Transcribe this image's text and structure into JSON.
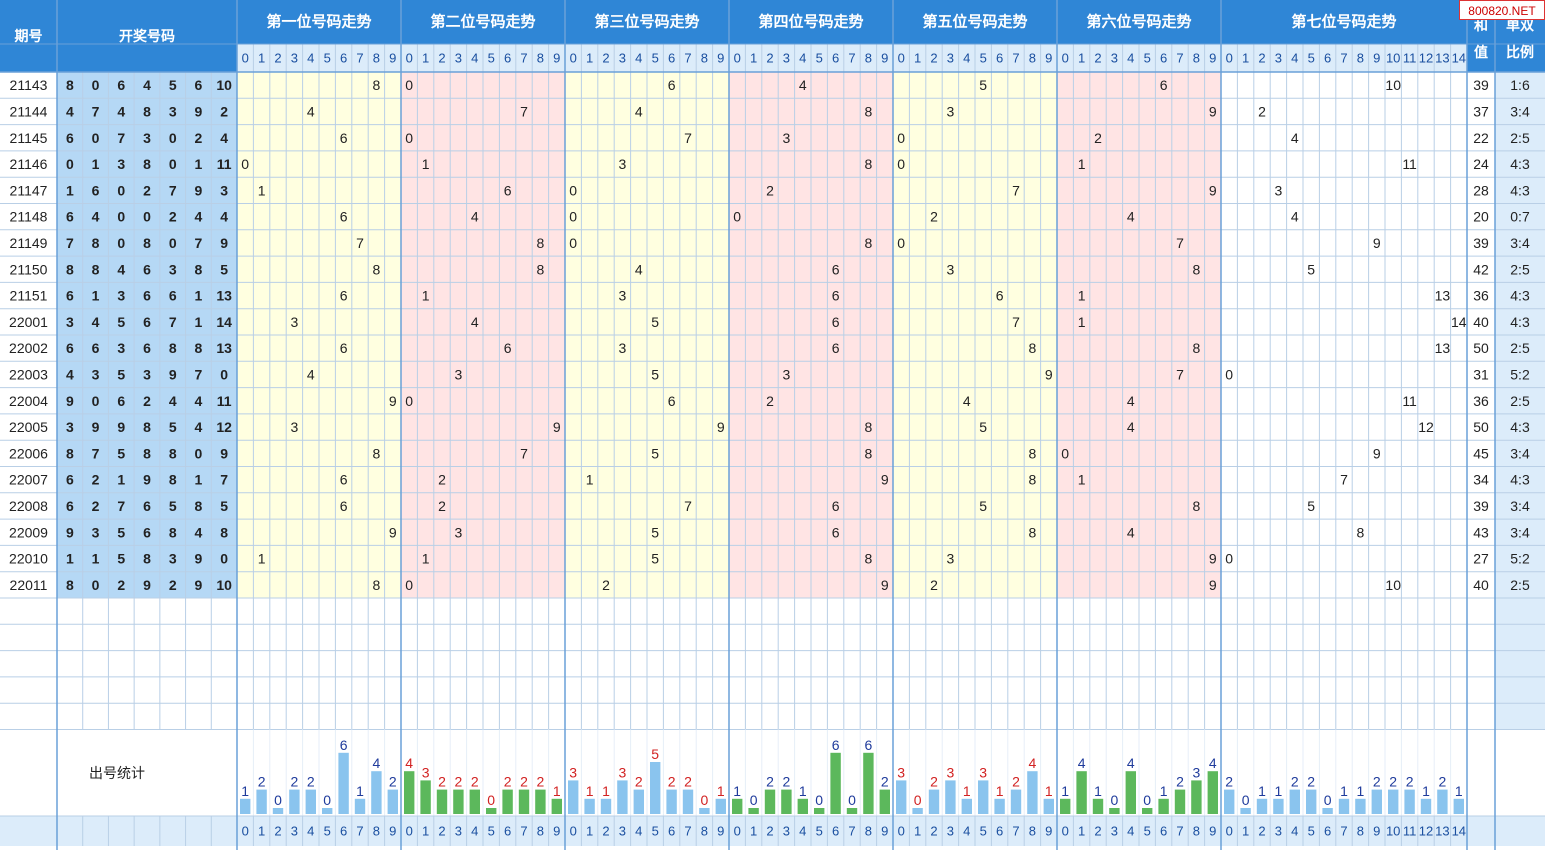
{
  "header": {
    "issue_label": "期号",
    "draw_label": "开奖号码",
    "sum_label": "和值",
    "parity_label": "单双比例",
    "stats_label": "出号统计"
  },
  "watermark": "800820.NET",
  "colors": {
    "header_bg": "#2f86d6",
    "header_text": "#ffffff",
    "digit_header_bg": "#dcecfa",
    "issue_bg": "#ffffff",
    "draw_bg": "#b5d8f5",
    "yellow_bg": "#ffffe0",
    "pink_bg": "#ffe4e4",
    "white_bg": "#ffffff",
    "grid_line": "#b9cfe6",
    "divider": "#6aa0d8",
    "stat_blue": "#8ac4ee",
    "stat_green": "#5cb85c",
    "stat_num_blue": "#1f3b9c",
    "stat_num_red": "#d22222",
    "cell_text": "#222222"
  },
  "positions": [
    {
      "title": "第一位号码走势",
      "max": 9,
      "background": "yellow",
      "bar_color": "blue",
      "num_color": "blue",
      "counts": [
        1,
        2,
        0,
        2,
        2,
        0,
        6,
        1,
        4,
        2
      ]
    },
    {
      "title": "第二位号码走势",
      "max": 9,
      "background": "pink",
      "bar_color": "green",
      "num_color": "red",
      "counts": [
        4,
        3,
        2,
        2,
        2,
        0,
        2,
        2,
        2,
        1
      ]
    },
    {
      "title": "第三位号码走势",
      "max": 9,
      "background": "yellow",
      "bar_color": "blue",
      "num_color": "red",
      "counts": [
        3,
        1,
        1,
        3,
        2,
        5,
        2,
        2,
        0,
        1
      ]
    },
    {
      "title": "第四位号码走势",
      "max": 9,
      "background": "pink",
      "bar_color": "green",
      "num_color": "blue",
      "counts": [
        1,
        0,
        2,
        2,
        1,
        0,
        6,
        0,
        6,
        2
      ]
    },
    {
      "title": "第五位号码走势",
      "max": 9,
      "background": "yellow",
      "bar_color": "blue",
      "num_color": "red",
      "counts": [
        3,
        0,
        2,
        3,
        1,
        3,
        1,
        2,
        4,
        1
      ]
    },
    {
      "title": "第六位号码走势",
      "max": 9,
      "background": "pink",
      "bar_color": "green",
      "num_color": "blue",
      "counts": [
        1,
        4,
        1,
        0,
        4,
        0,
        1,
        2,
        3,
        4
      ]
    },
    {
      "title": "第七位号码走势",
      "max": 14,
      "background": "white",
      "bar_color": "blue",
      "num_color": "blue",
      "counts": [
        2,
        0,
        1,
        1,
        2,
        2,
        0,
        1,
        1,
        2,
        2,
        2,
        1,
        2,
        1
      ]
    }
  ],
  "rows": [
    {
      "issue": "21143",
      "nums": [
        8,
        0,
        6,
        4,
        5,
        6,
        10
      ],
      "sum": "39",
      "parity": "1:6"
    },
    {
      "issue": "21144",
      "nums": [
        4,
        7,
        4,
        8,
        3,
        9,
        2
      ],
      "sum": "37",
      "parity": "3:4"
    },
    {
      "issue": "21145",
      "nums": [
        6,
        0,
        7,
        3,
        0,
        2,
        4
      ],
      "sum": "22",
      "parity": "2:5"
    },
    {
      "issue": "21146",
      "nums": [
        0,
        1,
        3,
        8,
        0,
        1,
        11
      ],
      "sum": "24",
      "parity": "4:3"
    },
    {
      "issue": "21147",
      "nums": [
        1,
        6,
        0,
        2,
        7,
        9,
        3
      ],
      "sum": "28",
      "parity": "4:3"
    },
    {
      "issue": "21148",
      "nums": [
        6,
        4,
        0,
        0,
        2,
        4,
        4
      ],
      "sum": "20",
      "parity": "0:7"
    },
    {
      "issue": "21149",
      "nums": [
        7,
        8,
        0,
        8,
        0,
        7,
        9
      ],
      "sum": "39",
      "parity": "3:4"
    },
    {
      "issue": "21150",
      "nums": [
        8,
        8,
        4,
        6,
        3,
        8,
        5
      ],
      "sum": "42",
      "parity": "2:5"
    },
    {
      "issue": "21151",
      "nums": [
        6,
        1,
        3,
        6,
        6,
        1,
        13
      ],
      "sum": "36",
      "parity": "4:3"
    },
    {
      "issue": "22001",
      "nums": [
        3,
        4,
        5,
        6,
        7,
        1,
        14
      ],
      "sum": "40",
      "parity": "4:3"
    },
    {
      "issue": "22002",
      "nums": [
        6,
        6,
        3,
        6,
        8,
        8,
        13
      ],
      "sum": "50",
      "parity": "2:5"
    },
    {
      "issue": "22003",
      "nums": [
        4,
        3,
        5,
        3,
        9,
        7,
        0
      ],
      "sum": "31",
      "parity": "5:2"
    },
    {
      "issue": "22004",
      "nums": [
        9,
        0,
        6,
        2,
        4,
        4,
        11
      ],
      "sum": "36",
      "parity": "2:5"
    },
    {
      "issue": "22005",
      "nums": [
        3,
        9,
        9,
        8,
        5,
        4,
        12
      ],
      "sum": "50",
      "parity": "4:3"
    },
    {
      "issue": "22006",
      "nums": [
        8,
        7,
        5,
        8,
        8,
        0,
        9
      ],
      "sum": "45",
      "parity": "3:4"
    },
    {
      "issue": "22007",
      "nums": [
        6,
        2,
        1,
        9,
        8,
        1,
        7
      ],
      "sum": "34",
      "parity": "4:3"
    },
    {
      "issue": "22008",
      "nums": [
        6,
        2,
        7,
        6,
        5,
        8,
        5
      ],
      "sum": "39",
      "parity": "3:4"
    },
    {
      "issue": "22009",
      "nums": [
        9,
        3,
        5,
        6,
        8,
        4,
        8
      ],
      "sum": "43",
      "parity": "3:4"
    },
    {
      "issue": "22010",
      "nums": [
        1,
        1,
        5,
        8,
        3,
        9,
        0
      ],
      "sum": "27",
      "parity": "5:2"
    },
    {
      "issue": "22011",
      "nums": [
        8,
        0,
        2,
        9,
        2,
        9,
        10
      ],
      "sum": "40",
      "parity": "2:5"
    }
  ]
}
